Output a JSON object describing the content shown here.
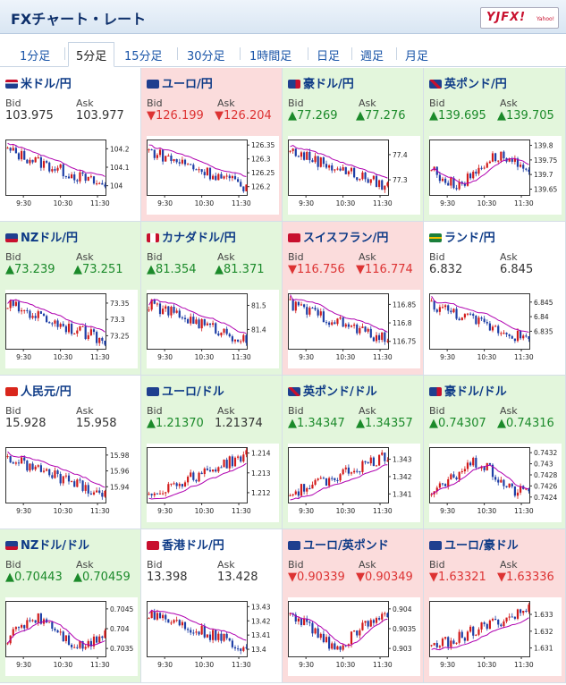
{
  "header": {
    "title": "FXチャート・レート",
    "logo": "YJFX!",
    "logo_sub": "Yahoo!"
  },
  "tabs": [
    {
      "label": "1分足"
    },
    {
      "label": "5分足",
      "active": true
    },
    {
      "label": "15分足"
    },
    {
      "label": "30分足"
    },
    {
      "label": "1時間足"
    },
    {
      "label": "日足"
    },
    {
      "label": "週足"
    },
    {
      "label": "月足"
    }
  ],
  "labels": {
    "bid": "Bid",
    "ask": "Ask"
  },
  "colors": {
    "up": "#1b8a2a",
    "down": "#d33",
    "up_bg": "#e3f6dc",
    "down_bg": "#fbdcdc",
    "ma": "#b000b0",
    "candle_up": "#d21a1a",
    "candle_down": "#1d3ea6"
  },
  "x_ticks": [
    "9:30",
    "10:30",
    "11:30"
  ],
  "pairs": [
    {
      "name": "米ドル/円",
      "flag": "us",
      "trend": "flat",
      "bid": "103.975",
      "ask": "103.977",
      "bid_arrow": "",
      "ask_arrow": "",
      "y_ticks": [
        "104.2",
        "104.1",
        "104"
      ],
      "y_min": 103.95,
      "y_max": 104.25,
      "series_shape": "down"
    },
    {
      "name": "ユーロ/円",
      "flag": "eu",
      "trend": "down",
      "bid": "126.199",
      "ask": "126.204",
      "bid_arrow": "▼",
      "ask_arrow": "▼",
      "y_ticks": [
        "126.35",
        "126.3",
        "126.25",
        "126.2"
      ],
      "y_min": 126.17,
      "y_max": 126.37,
      "series_shape": "down"
    },
    {
      "name": "豪ドル/円",
      "flag": "au",
      "trend": "up",
      "bid": "77.269",
      "ask": "77.276",
      "bid_arrow": "▲",
      "ask_arrow": "▲",
      "y_ticks": [
        "77.4",
        "77.3"
      ],
      "y_min": 77.24,
      "y_max": 77.46,
      "series_shape": "down"
    },
    {
      "name": "英ポンド/円",
      "flag": "gb",
      "trend": "up",
      "bid": "139.695",
      "ask": "139.705",
      "bid_arrow": "▲",
      "ask_arrow": "▲",
      "y_ticks": [
        "139.8",
        "139.75",
        "139.7",
        "139.65"
      ],
      "y_min": 139.63,
      "y_max": 139.82,
      "series_shape": "wave"
    },
    {
      "name": "NZドル/円",
      "flag": "nz",
      "trend": "up",
      "bid": "73.239",
      "ask": "73.251",
      "bid_arrow": "▲",
      "ask_arrow": "▲",
      "y_ticks": [
        "73.35",
        "73.3",
        "73.25"
      ],
      "y_min": 73.21,
      "y_max": 73.38,
      "series_shape": "down"
    },
    {
      "name": "カナダドル/円",
      "flag": "ca",
      "trend": "up",
      "bid": "81.354",
      "ask": "81.371",
      "bid_arrow": "▲",
      "ask_arrow": "▲",
      "y_ticks": [
        "81.5",
        "81.4"
      ],
      "y_min": 81.32,
      "y_max": 81.55,
      "series_shape": "down"
    },
    {
      "name": "スイスフラン/円",
      "flag": "ch",
      "trend": "down",
      "bid": "116.756",
      "ask": "116.774",
      "bid_arrow": "▼",
      "ask_arrow": "▼",
      "y_ticks": [
        "116.85",
        "116.8",
        "116.75"
      ],
      "y_min": 116.73,
      "y_max": 116.88,
      "series_shape": "down"
    },
    {
      "name": "ランド/円",
      "flag": "za",
      "trend": "flat",
      "bid": "6.832",
      "ask": "6.845",
      "bid_arrow": "",
      "ask_arrow": "",
      "y_ticks": [
        "6.845",
        "6.84",
        "6.835"
      ],
      "y_min": 6.829,
      "y_max": 6.848,
      "series_shape": "down"
    },
    {
      "name": "人民元/円",
      "flag": "cn",
      "trend": "flat",
      "bid": "15.928",
      "ask": "15.958",
      "bid_arrow": "",
      "ask_arrow": "",
      "y_ticks": [
        "15.98",
        "15.96",
        "15.94"
      ],
      "y_min": 15.92,
      "y_max": 15.99,
      "series_shape": "down"
    },
    {
      "name": "ユーロ/ドル",
      "flag": "eu",
      "trend": "up",
      "bid": "1.21370",
      "ask": "1.21374",
      "bid_arrow": "▲",
      "ask_arrow": "",
      "y_ticks": [
        "1.214",
        "1.213",
        "1.212"
      ],
      "y_min": 1.2115,
      "y_max": 1.2143,
      "series_shape": "up"
    },
    {
      "name": "英ポンド/ドル",
      "flag": "gb",
      "trend": "up",
      "bid": "1.34347",
      "ask": "1.34357",
      "bid_arrow": "▲",
      "ask_arrow": "▲",
      "y_ticks": [
        "1.343",
        "1.342",
        "1.341"
      ],
      "y_min": 1.3405,
      "y_max": 1.3437,
      "series_shape": "up"
    },
    {
      "name": "豪ドル/ドル",
      "flag": "au",
      "trend": "up",
      "bid": "0.74307",
      "ask": "0.74316",
      "bid_arrow": "▲",
      "ask_arrow": "▲",
      "y_ticks": [
        "0.7432",
        "0.743",
        "0.7428",
        "0.7426",
        "0.7424"
      ],
      "y_min": 0.7423,
      "y_max": 0.7433,
      "series_shape": "wave"
    },
    {
      "name": "NZドル/ドル",
      "flag": "nz",
      "trend": "up",
      "bid": "0.70443",
      "ask": "0.70459",
      "bid_arrow": "▲",
      "ask_arrow": "▲",
      "y_ticks": [
        "0.7045",
        "0.704",
        "0.7035"
      ],
      "y_min": 0.7033,
      "y_max": 0.7047,
      "series_shape": "wave"
    },
    {
      "name": "香港ドル/円",
      "flag": "hk",
      "trend": "flat",
      "bid": "13.398",
      "ask": "13.428",
      "bid_arrow": "",
      "ask_arrow": "",
      "y_ticks": [
        "13.43",
        "13.42",
        "13.41",
        "13.4"
      ],
      "y_min": 13.395,
      "y_max": 13.434,
      "series_shape": "down"
    },
    {
      "name": "ユーロ/英ポンド",
      "flag": "eu",
      "trend": "down",
      "bid": "0.90339",
      "ask": "0.90349",
      "bid_arrow": "▼",
      "ask_arrow": "▼",
      "y_ticks": [
        "0.904",
        "0.9035",
        "0.903"
      ],
      "y_min": 0.9028,
      "y_max": 0.9042,
      "series_shape": "wave"
    },
    {
      "name": "ユーロ/豪ドル",
      "flag": "eu",
      "trend": "down",
      "bid": "1.63321",
      "ask": "1.63336",
      "bid_arrow": "▼",
      "ask_arrow": "▼",
      "y_ticks": [
        "1.633",
        "1.632",
        "1.631"
      ],
      "y_min": 1.6305,
      "y_max": 1.6338,
      "series_shape": "up"
    }
  ]
}
